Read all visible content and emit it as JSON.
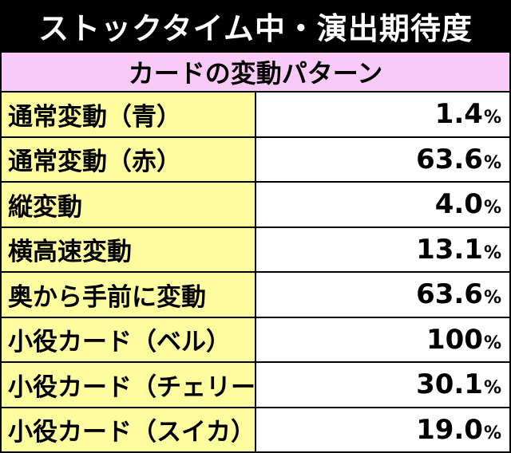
{
  "title": "ストックタイム中・演出期待度",
  "subtitle": "カードの変動パターン",
  "unit": "%",
  "rows": [
    {
      "label": "通常変動（青）",
      "value": "1.4"
    },
    {
      "label": "通常変動（赤）",
      "value": "63.6"
    },
    {
      "label": "縦変動",
      "value": "4.0"
    },
    {
      "label": "横高速変動",
      "value": "13.1"
    },
    {
      "label": "奥から手前に変動",
      "value": "63.6"
    },
    {
      "label": "小役カード（ベル）",
      "value": "100"
    },
    {
      "label": "小役カード（チェリー）",
      "value": "30.1"
    },
    {
      "label": "小役カード（スイカ）",
      "value": "19.0"
    }
  ],
  "colors": {
    "title_bg": "#000000",
    "subtitle_bg": "#f9c9f7",
    "label_bg": "#fdfda0",
    "value_bg": "#ffffff"
  }
}
